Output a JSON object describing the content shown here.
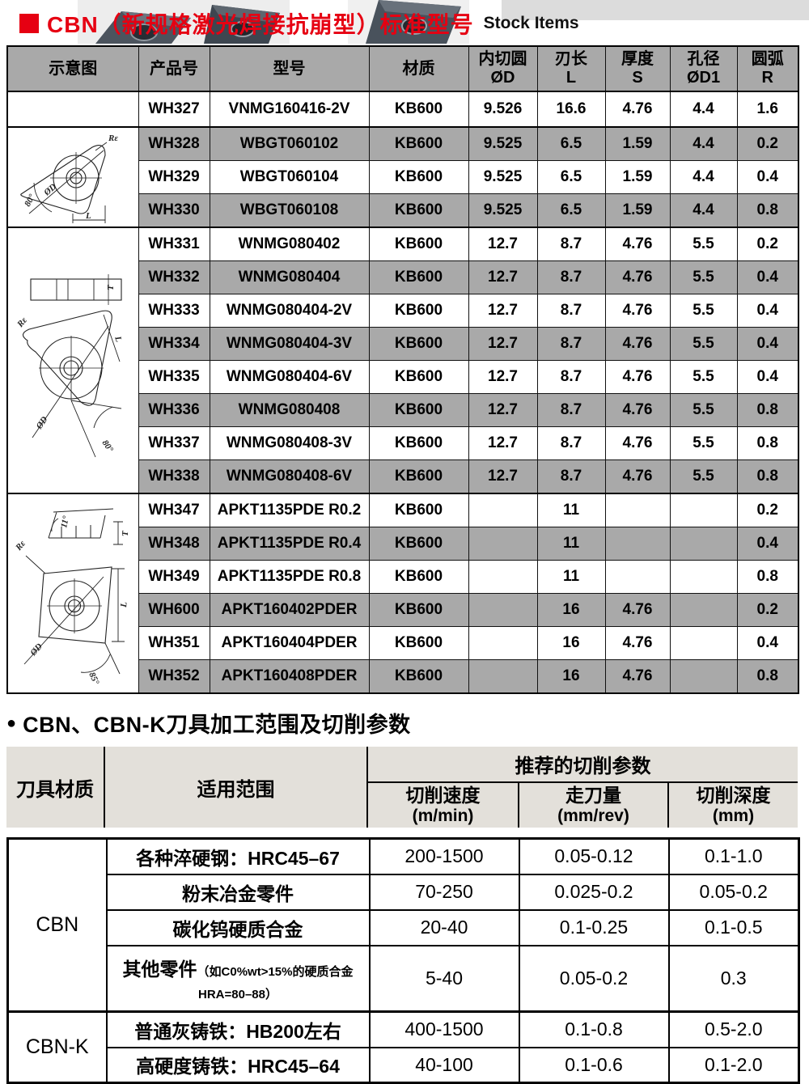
{
  "page": {
    "title_square": "■",
    "title_zh": "CBN（新规格激光焊接抗崩型）标准型号",
    "title_en": "Stock Items",
    "colors": {
      "accent_red": "#e60012",
      "row_gray": "#a9a9a9",
      "params_header_bg": "#e3e0da",
      "border": "#000000"
    }
  },
  "stock_table": {
    "columns": [
      {
        "line1": "示意图",
        "line2": ""
      },
      {
        "line1": "产品号",
        "line2": ""
      },
      {
        "line1": "型号",
        "line2": ""
      },
      {
        "line1": "材质",
        "line2": ""
      },
      {
        "line1": "内切圆",
        "line2": "ØD"
      },
      {
        "line1": "刃长",
        "line2": "L"
      },
      {
        "line1": "厚度",
        "line2": "S"
      },
      {
        "line1": "孔径",
        "line2": "ØD1"
      },
      {
        "line1": "圆弧",
        "line2": "R"
      }
    ],
    "groups": [
      {
        "diagram": "blank",
        "rows": [
          {
            "product": "WH327",
            "model": "VNMG160416-2V",
            "material": "KB600",
            "d": "9.526",
            "l": "16.6",
            "s": "4.76",
            "d1": "4.4",
            "r": "1.6",
            "shaded": false
          }
        ]
      },
      {
        "diagram": "wbgt",
        "rows": [
          {
            "product": "WH328",
            "model": "WBGT060102",
            "material": "KB600",
            "d": "9.525",
            "l": "6.5",
            "s": "1.59",
            "d1": "4.4",
            "r": "0.2",
            "shaded": true
          },
          {
            "product": "WH329",
            "model": "WBGT060104",
            "material": "KB600",
            "d": "9.525",
            "l": "6.5",
            "s": "1.59",
            "d1": "4.4",
            "r": "0.4",
            "shaded": false
          },
          {
            "product": "WH330",
            "model": "WBGT060108",
            "material": "KB600",
            "d": "9.525",
            "l": "6.5",
            "s": "1.59",
            "d1": "4.4",
            "r": "0.8",
            "shaded": true
          }
        ]
      },
      {
        "diagram": "wnmg",
        "rows": [
          {
            "product": "WH331",
            "model": "WNMG080402",
            "material": "KB600",
            "d": "12.7",
            "l": "8.7",
            "s": "4.76",
            "d1": "5.5",
            "r": "0.2",
            "shaded": false
          },
          {
            "product": "WH332",
            "model": "WNMG080404",
            "material": "KB600",
            "d": "12.7",
            "l": "8.7",
            "s": "4.76",
            "d1": "5.5",
            "r": "0.4",
            "shaded": true
          },
          {
            "product": "WH333",
            "model": "WNMG080404-2V",
            "material": "KB600",
            "d": "12.7",
            "l": "8.7",
            "s": "4.76",
            "d1": "5.5",
            "r": "0.4",
            "shaded": false
          },
          {
            "product": "WH334",
            "model": "WNMG080404-3V",
            "material": "KB600",
            "d": "12.7",
            "l": "8.7",
            "s": "4.76",
            "d1": "5.5",
            "r": "0.4",
            "shaded": true
          },
          {
            "product": "WH335",
            "model": "WNMG080404-6V",
            "material": "KB600",
            "d": "12.7",
            "l": "8.7",
            "s": "4.76",
            "d1": "5.5",
            "r": "0.4",
            "shaded": false
          },
          {
            "product": "WH336",
            "model": "WNMG080408",
            "material": "KB600",
            "d": "12.7",
            "l": "8.7",
            "s": "4.76",
            "d1": "5.5",
            "r": "0.8",
            "shaded": true
          },
          {
            "product": "WH337",
            "model": "WNMG080408-3V",
            "material": "KB600",
            "d": "12.7",
            "l": "8.7",
            "s": "4.76",
            "d1": "5.5",
            "r": "0.8",
            "shaded": false
          },
          {
            "product": "WH338",
            "model": "WNMG080408-6V",
            "material": "KB600",
            "d": "12.7",
            "l": "8.7",
            "s": "4.76",
            "d1": "5.5",
            "r": "0.8",
            "shaded": true
          }
        ]
      },
      {
        "diagram": "apkt",
        "rows": [
          {
            "product": "WH347",
            "model": "APKT1135PDE R0.2",
            "material": "KB600",
            "d": "",
            "l": "11",
            "s": "",
            "d1": "",
            "r": "0.2",
            "shaded": false
          },
          {
            "product": "WH348",
            "model": "APKT1135PDE R0.4",
            "material": "KB600",
            "d": "",
            "l": "11",
            "s": "",
            "d1": "",
            "r": "0.4",
            "shaded": true
          },
          {
            "product": "WH349",
            "model": "APKT1135PDE R0.8",
            "material": "KB600",
            "d": "",
            "l": "11",
            "s": "",
            "d1": "",
            "r": "0.8",
            "shaded": false
          },
          {
            "product": "WH600",
            "model": "APKT160402PDER",
            "material": "KB600",
            "d": "",
            "l": "16",
            "s": "4.76",
            "d1": "",
            "r": "0.2",
            "shaded": true
          },
          {
            "product": "WH351",
            "model": "APKT160404PDER",
            "material": "KB600",
            "d": "",
            "l": "16",
            "s": "4.76",
            "d1": "",
            "r": "0.4",
            "shaded": false
          },
          {
            "product": "WH352",
            "model": "APKT160408PDER",
            "material": "KB600",
            "d": "",
            "l": "16",
            "s": "4.76",
            "d1": "",
            "r": "0.8",
            "shaded": true
          }
        ]
      }
    ]
  },
  "diagrams": {
    "labels": {
      "re": "Rε",
      "od": "ØD",
      "l": "L",
      "t": "T",
      "a80": "80°",
      "a11": "11°",
      "a85": "85°"
    }
  },
  "params_section": {
    "bullet": "●",
    "heading": "CBN、CBN-K刀具加工范围及切削参数",
    "table": {
      "col_material": "刀具材质",
      "col_range": "适用范围",
      "col_params": "推荐的切削参数",
      "sub_cols": [
        {
          "line1": "切削速度",
          "line2": "(m/min)"
        },
        {
          "line1": "走刀量",
          "line2": "(mm/rev)"
        },
        {
          "line1": "切削深度",
          "line2": "(mm)"
        }
      ],
      "groups": [
        {
          "material": "CBN",
          "rows": [
            {
              "range": "各种淬硬钢：HRC45–67",
              "note": "",
              "speed": "200-1500",
              "feed": "0.05-0.12",
              "depth": "0.1-1.0"
            },
            {
              "range": "粉末冶金零件",
              "note": "",
              "speed": "70-250",
              "feed": "0.025-0.2",
              "depth": "0.05-0.2"
            },
            {
              "range": "碳化钨硬质合金",
              "note": "",
              "speed": "20-40",
              "feed": "0.1-0.25",
              "depth": "0.1-0.5"
            },
            {
              "range": "其他零件",
              "note": "（如C0%wt>15%的硬质合金HRA=80–88）",
              "speed": "5-40",
              "feed": "0.05-0.2",
              "depth": "0.3"
            }
          ]
        },
        {
          "material": "CBN-K",
          "rows": [
            {
              "range": "普通灰铸铁：HB200左右",
              "note": "",
              "speed": "400-1500",
              "feed": "0.1-0.8",
              "depth": "0.5-2.0"
            },
            {
              "range": "高硬度铸铁：HRC45–64",
              "note": "",
              "speed": "40-100",
              "feed": "0.1-0.6",
              "depth": "0.1-2.0"
            }
          ]
        }
      ]
    }
  }
}
